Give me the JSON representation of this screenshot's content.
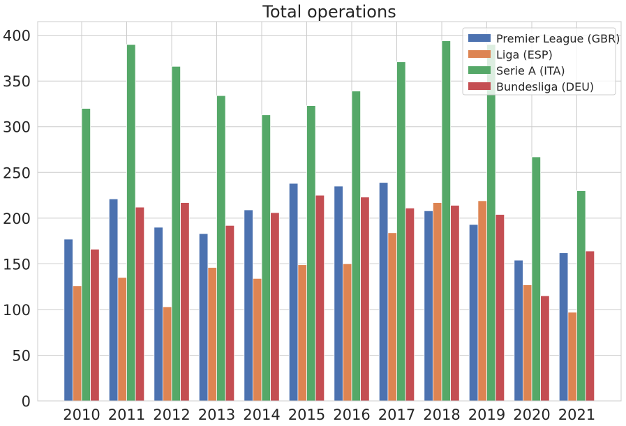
{
  "chart_data": {
    "type": "bar",
    "title": "Total operations",
    "xlabel": "",
    "ylabel": "",
    "categories": [
      "2010",
      "2011",
      "2012",
      "2013",
      "2014",
      "2015",
      "2016",
      "2017",
      "2018",
      "2019",
      "2020",
      "2021"
    ],
    "series": [
      {
        "name": "Premier League (GBR)",
        "color": "#4c72b0",
        "values": [
          177,
          221,
          190,
          183,
          209,
          238,
          235,
          239,
          208,
          193,
          154,
          162
        ]
      },
      {
        "name": "Liga (ESP)",
        "color": "#dd8452",
        "values": [
          126,
          135,
          103,
          146,
          134,
          149,
          150,
          184,
          217,
          219,
          127,
          97
        ]
      },
      {
        "name": "Serie A (ITA)",
        "color": "#55a868",
        "values": [
          320,
          390,
          366,
          334,
          313,
          323,
          339,
          371,
          394,
          390,
          267,
          230
        ]
      },
      {
        "name": "Bundesliga (DEU)",
        "color": "#c44e52",
        "values": [
          166,
          212,
          217,
          192,
          206,
          225,
          223,
          211,
          214,
          204,
          115,
          164
        ]
      }
    ],
    "ylim": [
      0,
      415
    ],
    "yticks": [
      0,
      50,
      100,
      150,
      200,
      250,
      300,
      350,
      400
    ],
    "grid": true,
    "legend_position": "top-right"
  }
}
